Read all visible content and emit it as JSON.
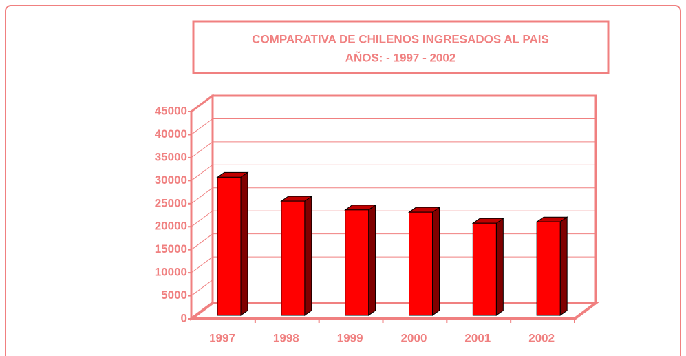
{
  "chart_data": {
    "type": "bar3d",
    "title": [
      "COMPARATIVA DE CHILENOS INGRESADOS AL PAIS",
      "AÑOS: - 1997 - 2002"
    ],
    "categories": [
      "1997",
      "1998",
      "1999",
      "2000",
      "2001",
      "2002"
    ],
    "values": [
      30000,
      24800,
      22900,
      22400,
      20000,
      20300
    ],
    "color": "#ff0000",
    "ylim": [
      0,
      45000
    ],
    "yticks": [
      0,
      5000,
      10000,
      15000,
      20000,
      25000,
      30000,
      35000,
      40000,
      45000
    ],
    "grid": true
  }
}
